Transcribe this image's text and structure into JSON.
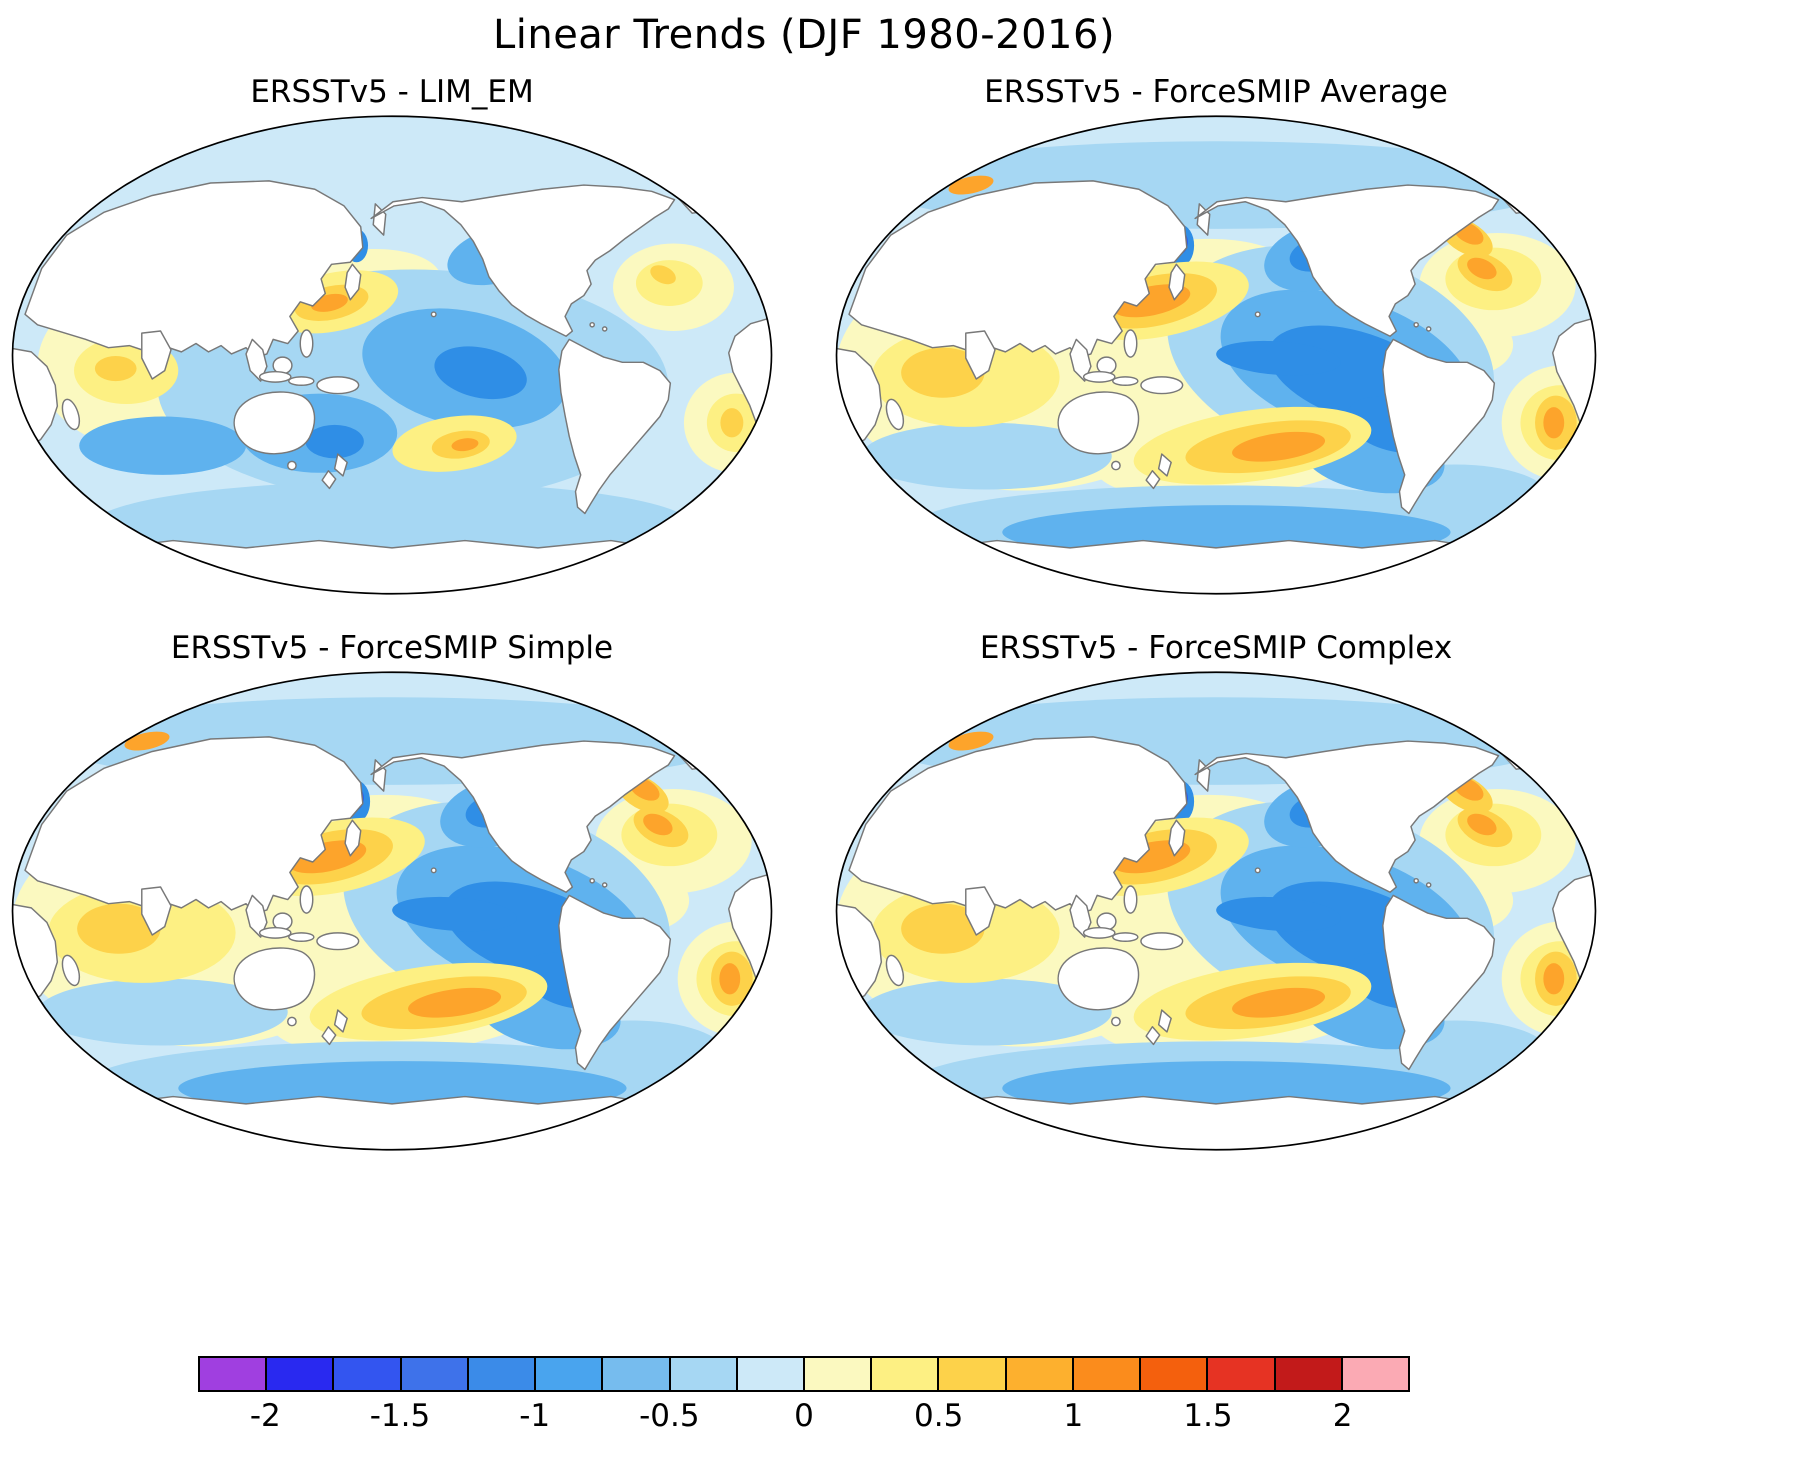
{
  "figure": {
    "title": "Linear Trends (DJF 1980-2016)",
    "panels": [
      {
        "title": "ERSSTv5 - LIM_EM"
      },
      {
        "title": "ERSSTv5 - ForceSMIP Average"
      },
      {
        "title": "ERSSTv5 - ForceSMIP Simple"
      },
      {
        "title": "ERSSTv5 - ForceSMIP Complex"
      }
    ],
    "colorbar": {
      "tick_labels": [
        "-2",
        "-1.5",
        "-1",
        "-0.5",
        "0",
        "0.5",
        "1",
        "1.5",
        "2"
      ],
      "segment_colors": [
        "#A03FE0",
        "#2929F0",
        "#3355F0",
        "#3E72EA",
        "#3B8BE8",
        "#49A4EE",
        "#76BCEE",
        "#A6D7F3",
        "#CDE9F8",
        "#FBF9C0",
        "#FDF083",
        "#FDD24A",
        "#FDB02E",
        "#FB8C1C",
        "#F4600D",
        "#E63323",
        "#C21A1A",
        "#FBAAB4"
      ]
    },
    "map_colors": {
      "coastline": "#787878",
      "outline": "#000000",
      "ocean_base": "#CDE9F8",
      "land": "#ffffff"
    }
  },
  "chart_data": {
    "type": "heatmap",
    "title": "Linear Trends (DJF 1980-2016)",
    "subplots": [
      "ERSSTv5 - LIM_EM",
      "ERSSTv5 - ForceSMIP Average",
      "ERSSTv5 - ForceSMIP Simple",
      "ERSSTv5 - ForceSMIP Complex"
    ],
    "projection": "elliptical (Robinson-style) world maps, Pacific-centered",
    "legend_position": "bottom horizontal discrete colorbar",
    "colorbar_ticks": [
      -2,
      -1.5,
      -1,
      -0.5,
      0,
      0.5,
      1,
      1.5,
      2
    ],
    "colorbar_levels_estimated": [
      -2.25,
      -2,
      -1.75,
      -1.5,
      -1.25,
      -1,
      -0.75,
      -0.5,
      -0.25,
      0,
      0.25,
      0.5,
      0.75,
      1,
      1.25,
      1.5,
      1.75,
      2,
      2.25
    ],
    "colorbar_colors": [
      "#A03FE0",
      "#2929F0",
      "#3355F0",
      "#3E72EA",
      "#3B8BE8",
      "#49A4EE",
      "#76BCEE",
      "#A6D7F3",
      "#CDE9F8",
      "#FBF9C0",
      "#FDF083",
      "#FDD24A",
      "#FDB02E",
      "#FB8C1C",
      "#F4600D",
      "#E63323",
      "#C21A1A",
      "#FBAAB4"
    ],
    "qualitative_pattern": "All four panels: warm (yellow-orange) anomalies in the central North Pacific, South Pacific band, western Indian Ocean, northwest Atlantic and South American east coast; cool (blue) anomalies over the central/eastern tropical Pacific wedge, Gulf of Alaska and Southern Ocean. LIM_EM panel is weaker/more muted than the three ForceSMIP panels."
  }
}
